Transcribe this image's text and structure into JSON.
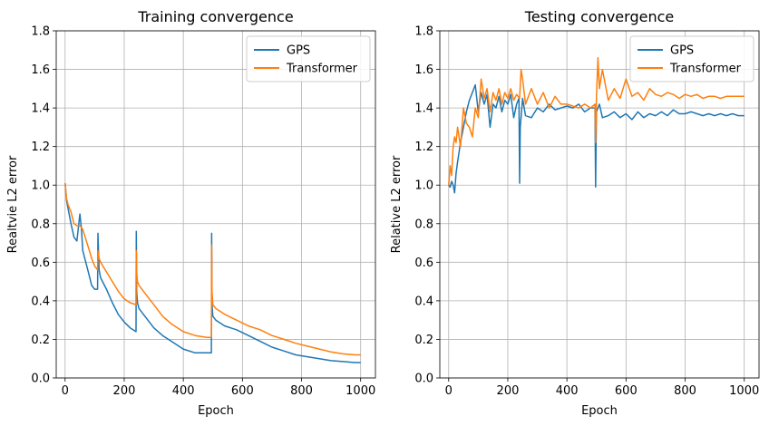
{
  "chart_data": [
    {
      "type": "line",
      "title": "Training convergence",
      "xlabel": "Epoch",
      "ylabel": "Realtvie L2 error",
      "xlim": [
        -30,
        1050
      ],
      "ylim": [
        0.0,
        1.8
      ],
      "xticks": [
        "0",
        "200",
        "400",
        "600",
        "800",
        "1000"
      ],
      "xtick_values": [
        0,
        200,
        400,
        600,
        800,
        1000
      ],
      "yticks": [
        "0.0",
        "0.2",
        "0.4",
        "0.6",
        "0.8",
        "1.0",
        "1.2",
        "1.4",
        "1.6",
        "1.8"
      ],
      "ytick_values": [
        0.0,
        0.2,
        0.4,
        0.6,
        0.8,
        1.0,
        1.2,
        1.4,
        1.6,
        1.8
      ],
      "grid": true,
      "legend_position": "top-right",
      "series": [
        {
          "name": "GPS",
          "color": "#1f77b4",
          "x": [
            0,
            5,
            10,
            20,
            30,
            40,
            50,
            55,
            60,
            70,
            80,
            90,
            100,
            110,
            111,
            115,
            120,
            140,
            160,
            180,
            200,
            220,
            240,
            241,
            242,
            245,
            250,
            270,
            300,
            330,
            360,
            400,
            440,
            480,
            495,
            496,
            497,
            500,
            510,
            540,
            580,
            620,
            660,
            700,
            740,
            780,
            820,
            860,
            900,
            940,
            980,
            1000
          ],
          "y": [
            1.01,
            0.92,
            0.88,
            0.8,
            0.73,
            0.71,
            0.85,
            0.78,
            0.66,
            0.6,
            0.54,
            0.48,
            0.46,
            0.46,
            0.75,
            0.56,
            0.52,
            0.46,
            0.39,
            0.33,
            0.29,
            0.26,
            0.24,
            0.76,
            0.45,
            0.39,
            0.36,
            0.32,
            0.26,
            0.22,
            0.19,
            0.15,
            0.13,
            0.13,
            0.13,
            0.75,
            0.38,
            0.32,
            0.3,
            0.27,
            0.25,
            0.22,
            0.19,
            0.16,
            0.14,
            0.12,
            0.11,
            0.1,
            0.09,
            0.085,
            0.08,
            0.08
          ]
        },
        {
          "name": "Transformer",
          "color": "#ff7f0e",
          "x": [
            0,
            5,
            10,
            20,
            30,
            40,
            50,
            60,
            70,
            80,
            90,
            100,
            110,
            111,
            115,
            120,
            140,
            160,
            180,
            200,
            220,
            240,
            241,
            242,
            245,
            250,
            270,
            300,
            330,
            360,
            400,
            440,
            480,
            495,
            496,
            497,
            500,
            510,
            540,
            580,
            620,
            660,
            700,
            740,
            780,
            820,
            860,
            900,
            940,
            980,
            1000
          ],
          "y": [
            1.01,
            0.93,
            0.9,
            0.86,
            0.8,
            0.79,
            0.79,
            0.77,
            0.72,
            0.67,
            0.62,
            0.58,
            0.56,
            0.66,
            0.62,
            0.6,
            0.55,
            0.5,
            0.45,
            0.41,
            0.39,
            0.38,
            0.66,
            0.55,
            0.5,
            0.48,
            0.44,
            0.38,
            0.32,
            0.28,
            0.24,
            0.22,
            0.21,
            0.21,
            0.69,
            0.45,
            0.38,
            0.36,
            0.33,
            0.3,
            0.27,
            0.25,
            0.22,
            0.2,
            0.18,
            0.165,
            0.15,
            0.135,
            0.125,
            0.12,
            0.12
          ]
        }
      ]
    },
    {
      "type": "line",
      "title": "Testing convergence",
      "xlabel": "Epoch",
      "ylabel": "Relative L2  error",
      "xlim": [
        -30,
        1050
      ],
      "ylim": [
        0.0,
        1.8
      ],
      "xticks": [
        "0",
        "200",
        "400",
        "600",
        "800",
        "1000"
      ],
      "xtick_values": [
        0,
        200,
        400,
        600,
        800,
        1000
      ],
      "yticks": [
        "0.0",
        "0.2",
        "0.4",
        "0.6",
        "0.8",
        "1.0",
        "1.2",
        "1.4",
        "1.6",
        "1.8"
      ],
      "ytick_values": [
        0.0,
        0.2,
        0.4,
        0.6,
        0.8,
        1.0,
        1.2,
        1.4,
        1.6,
        1.8
      ],
      "grid": true,
      "legend_position": "top-right",
      "series": [
        {
          "name": "GPS",
          "color": "#1f77b4",
          "x": [
            0,
            5,
            10,
            15,
            20,
            25,
            30,
            40,
            50,
            60,
            70,
            80,
            90,
            100,
            110,
            120,
            130,
            140,
            150,
            160,
            170,
            180,
            190,
            200,
            210,
            220,
            230,
            238,
            240,
            242,
            250,
            260,
            280,
            300,
            320,
            340,
            360,
            380,
            400,
            420,
            440,
            460,
            480,
            490,
            495,
            497,
            500,
            510,
            520,
            540,
            560,
            580,
            600,
            620,
            640,
            660,
            680,
            700,
            720,
            740,
            760,
            780,
            800,
            820,
            840,
            860,
            880,
            900,
            920,
            940,
            960,
            980,
            1000
          ],
          "y": [
            1.0,
            0.99,
            1.02,
            1.0,
            0.96,
            1.06,
            1.12,
            1.22,
            1.3,
            1.38,
            1.44,
            1.48,
            1.52,
            1.38,
            1.48,
            1.42,
            1.47,
            1.3,
            1.42,
            1.4,
            1.46,
            1.38,
            1.44,
            1.42,
            1.47,
            1.35,
            1.42,
            1.45,
            1.01,
            1.3,
            1.45,
            1.36,
            1.35,
            1.4,
            1.38,
            1.42,
            1.39,
            1.4,
            1.41,
            1.4,
            1.42,
            1.38,
            1.4,
            1.4,
            1.4,
            0.99,
            1.38,
            1.42,
            1.35,
            1.36,
            1.38,
            1.35,
            1.37,
            1.34,
            1.38,
            1.35,
            1.37,
            1.36,
            1.38,
            1.36,
            1.39,
            1.37,
            1.37,
            1.38,
            1.37,
            1.36,
            1.37,
            1.36,
            1.37,
            1.36,
            1.37,
            1.36,
            1.36
          ]
        },
        {
          "name": "Transformer",
          "color": "#ff7f0e",
          "x": [
            0,
            5,
            10,
            15,
            20,
            25,
            30,
            40,
            50,
            60,
            70,
            80,
            90,
            100,
            110,
            120,
            130,
            140,
            150,
            160,
            170,
            180,
            190,
            200,
            210,
            220,
            230,
            240,
            245,
            250,
            260,
            280,
            300,
            320,
            340,
            360,
            380,
            400,
            420,
            440,
            460,
            480,
            495,
            497,
            500,
            505,
            510,
            520,
            540,
            560,
            580,
            600,
            620,
            640,
            660,
            680,
            700,
            720,
            740,
            760,
            780,
            800,
            820,
            840,
            860,
            880,
            900,
            920,
            940,
            960,
            980,
            1000
          ],
          "y": [
            1.0,
            1.1,
            1.05,
            1.2,
            1.25,
            1.22,
            1.3,
            1.2,
            1.4,
            1.32,
            1.3,
            1.25,
            1.4,
            1.35,
            1.55,
            1.45,
            1.5,
            1.38,
            1.48,
            1.44,
            1.5,
            1.42,
            1.48,
            1.45,
            1.5,
            1.44,
            1.47,
            1.45,
            1.6,
            1.55,
            1.42,
            1.5,
            1.42,
            1.48,
            1.4,
            1.46,
            1.42,
            1.42,
            1.41,
            1.4,
            1.42,
            1.4,
            1.42,
            1.22,
            1.45,
            1.66,
            1.5,
            1.6,
            1.44,
            1.5,
            1.45,
            1.55,
            1.46,
            1.48,
            1.44,
            1.5,
            1.47,
            1.46,
            1.48,
            1.47,
            1.45,
            1.47,
            1.46,
            1.47,
            1.45,
            1.46,
            1.46,
            1.45,
            1.46,
            1.46,
            1.46,
            1.46
          ]
        }
      ]
    }
  ]
}
